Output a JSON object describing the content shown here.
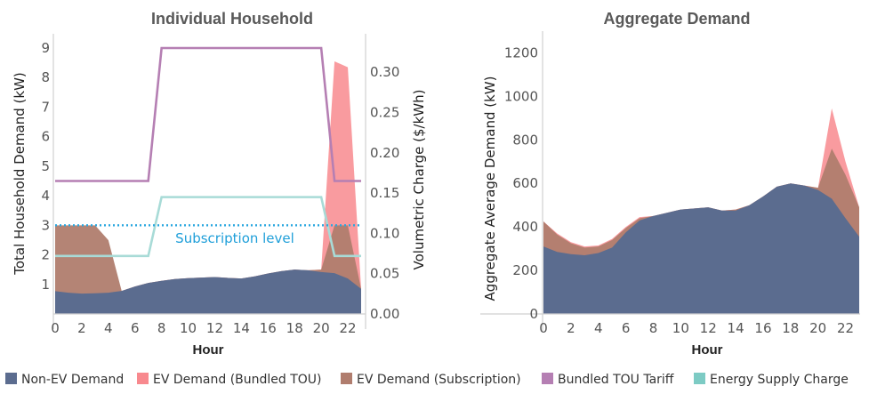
{
  "colors": {
    "non_ev": "#5b6c8f",
    "ev_tou": "#f8898e",
    "ev_sub": "#b07d6e",
    "tou_tariff": "#b57fb3",
    "supply_charge": "#a8dbd7",
    "subscription": "#2aa7df",
    "axis": "#d0d0d0"
  },
  "legend": [
    {
      "label": "Non-EV Demand",
      "color": "#5b6c8f"
    },
    {
      "label": "EV Demand (Bundled TOU)",
      "color": "#f8898e"
    },
    {
      "label": "EV Demand (Subscription)",
      "color": "#b07d6e"
    },
    {
      "label": "Bundled TOU Tariff",
      "color": "#b57fb3"
    },
    {
      "label": "Energy Supply Charge",
      "color": "#7dcbc4"
    }
  ],
  "chart_data": [
    {
      "type": "area",
      "title": "Individual Household",
      "xlabel": "Hour",
      "ylabel": "Total Household Demand (kW)",
      "y2label": "Volumetric Charge ($/kWh)",
      "xlim": [
        0,
        23
      ],
      "ylim": [
        0,
        9
      ],
      "y2lim": [
        0,
        0.33
      ],
      "xticks": [
        0,
        2,
        4,
        6,
        8,
        10,
        12,
        14,
        16,
        18,
        20,
        22
      ],
      "yticks": [
        1,
        2,
        3,
        4,
        5,
        6,
        7,
        8,
        9
      ],
      "y2ticks": [
        "0.00",
        "0.05",
        "0.10",
        "0.15",
        "0.20",
        "0.25",
        "0.30"
      ],
      "x": [
        0,
        1,
        2,
        3,
        4,
        5,
        6,
        7,
        8,
        9,
        10,
        11,
        12,
        13,
        14,
        15,
        16,
        17,
        18,
        19,
        20,
        21,
        22,
        23
      ],
      "series": [
        {
          "name": "EV Demand (Bundled TOU)",
          "kind": "stack_area",
          "values": [
            0.77,
            0.72,
            0.69,
            0.7,
            0.72,
            0.78,
            0.93,
            1.05,
            1.12,
            1.18,
            1.21,
            1.23,
            1.25,
            1.22,
            1.2,
            1.27,
            1.37,
            1.45,
            1.5,
            1.48,
            1.5,
            8.55,
            8.35,
            0.85
          ]
        },
        {
          "name": "EV Demand (Subscription)",
          "kind": "stack_area",
          "values": [
            3.0,
            3.0,
            3.0,
            3.0,
            2.5,
            0.78,
            0.93,
            1.05,
            1.12,
            1.18,
            1.21,
            1.23,
            1.25,
            1.22,
            1.2,
            1.27,
            1.37,
            1.45,
            1.5,
            1.48,
            1.5,
            3.0,
            3.0,
            0.85
          ]
        },
        {
          "name": "Non-EV Demand",
          "kind": "area",
          "values": [
            0.77,
            0.72,
            0.69,
            0.7,
            0.72,
            0.78,
            0.93,
            1.05,
            1.12,
            1.18,
            1.21,
            1.23,
            1.25,
            1.22,
            1.2,
            1.27,
            1.37,
            1.45,
            1.5,
            1.48,
            1.42,
            1.38,
            1.2,
            0.85
          ]
        },
        {
          "name": "Bundled TOU Tariff",
          "kind": "line",
          "axis": "y2",
          "values": [
            0.165,
            0.165,
            0.165,
            0.165,
            0.165,
            0.165,
            0.165,
            0.165,
            0.33,
            0.33,
            0.33,
            0.33,
            0.33,
            0.33,
            0.33,
            0.33,
            0.33,
            0.33,
            0.33,
            0.33,
            0.33,
            0.165,
            0.165,
            0.165
          ]
        },
        {
          "name": "Energy Supply Charge",
          "kind": "line",
          "axis": "y2",
          "values": [
            0.072,
            0.072,
            0.072,
            0.072,
            0.072,
            0.072,
            0.072,
            0.072,
            0.145,
            0.145,
            0.145,
            0.145,
            0.145,
            0.145,
            0.145,
            0.145,
            0.145,
            0.145,
            0.145,
            0.145,
            0.145,
            0.072,
            0.072,
            0.072
          ]
        }
      ],
      "subscription_level": {
        "label": "Subscription level",
        "value": 3.0
      }
    },
    {
      "type": "area",
      "title": "Aggregate Demand",
      "xlabel": "Hour",
      "ylabel": "Aggregate Average Demand (kW)",
      "xlim": [
        0,
        23
      ],
      "ylim": [
        0,
        1300
      ],
      "xticks": [
        0,
        2,
        4,
        6,
        8,
        10,
        12,
        14,
        16,
        18,
        20,
        22
      ],
      "yticks": [
        0,
        200,
        400,
        600,
        800,
        1000,
        1200
      ],
      "x": [
        0,
        1,
        2,
        3,
        4,
        5,
        6,
        7,
        8,
        9,
        10,
        11,
        12,
        13,
        14,
        15,
        16,
        17,
        18,
        19,
        20,
        21,
        22,
        23
      ],
      "series": [
        {
          "name": "EV Demand (Bundled TOU)",
          "kind": "stack_area",
          "values": [
            425,
            370,
            330,
            310,
            315,
            345,
            400,
            445,
            450,
            465,
            480,
            485,
            490,
            475,
            480,
            500,
            540,
            585,
            600,
            590,
            580,
            945,
            700,
            490
          ]
        },
        {
          "name": "EV Demand (Subscription)",
          "kind": "stack_area",
          "values": [
            425,
            365,
            325,
            305,
            310,
            340,
            395,
            440,
            450,
            465,
            480,
            485,
            490,
            475,
            480,
            500,
            540,
            585,
            600,
            590,
            580,
            760,
            640,
            490
          ]
        },
        {
          "name": "Non-EV Demand",
          "kind": "area",
          "values": [
            310,
            285,
            275,
            270,
            280,
            305,
            375,
            430,
            450,
            465,
            480,
            485,
            490,
            475,
            475,
            500,
            540,
            585,
            600,
            590,
            570,
            530,
            440,
            355
          ]
        }
      ]
    }
  ]
}
